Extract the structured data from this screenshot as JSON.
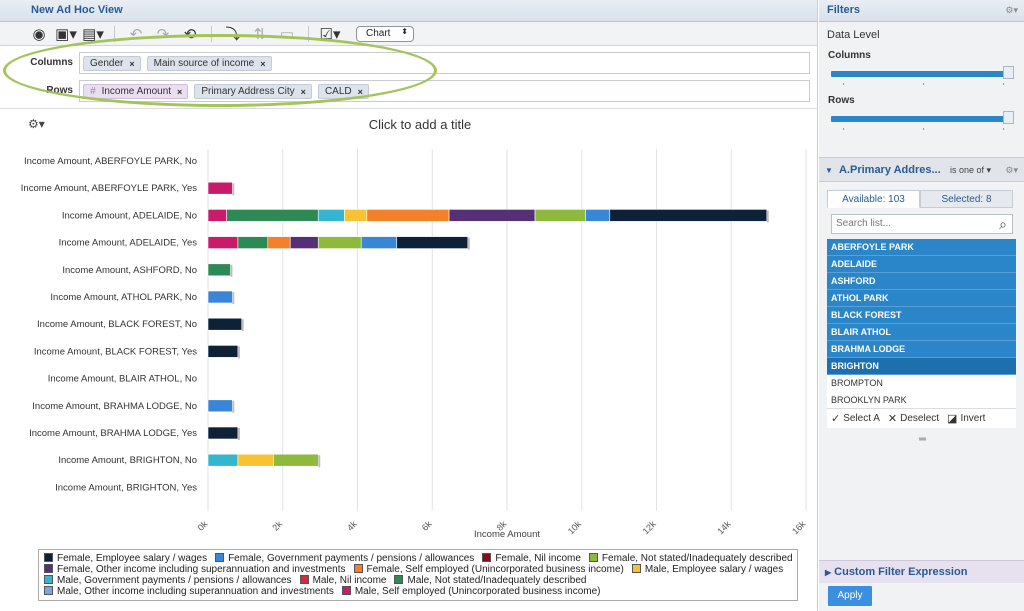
{
  "editor": {
    "title": "New Ad Hoc View",
    "toolbar": {
      "icons": [
        "eye-icon",
        "save-icon",
        "export-icon",
        "undo-icon",
        "redo-icon",
        "undo-all-icon",
        "switch-axes-icon",
        "pivot-icon",
        "sort-icon",
        "options-icon"
      ],
      "chart_type": "Chart"
    },
    "columns": {
      "label": "Columns",
      "pills": [
        {
          "text": "Gender"
        },
        {
          "text": "Main source of income"
        }
      ]
    },
    "rows": {
      "label": "Rows",
      "measure_hash": "#",
      "pills": [
        {
          "text": "Income Amount",
          "measure": true
        },
        {
          "text": "Primary Address City"
        },
        {
          "text": "CALD"
        }
      ]
    },
    "chart_title_placeholder": "Click to add a title",
    "remove_glyph": "×"
  },
  "chart_data": {
    "type": "bar",
    "orientation": "horizontal",
    "stacked": true,
    "xlabel": "Income Amount",
    "x_tick_labels": [
      "0k",
      "2k",
      "4k",
      "6k",
      "8k",
      "10k",
      "12k",
      "14k",
      "16k"
    ],
    "xlim": [
      0,
      16000
    ],
    "categories": [
      "Income Amount, ABERFOYLE PARK, No",
      "Income Amount, ABERFOYLE PARK, Yes",
      "Income Amount, ADELAIDE, No",
      "Income Amount, ADELAIDE, Yes",
      "Income Amount, ASHFORD, No",
      "Income Amount, ATHOL PARK, No",
      "Income Amount, BLACK FOREST, No",
      "Income Amount, BLACK FOREST, Yes",
      "Income Amount, BLAIR ATHOL, No",
      "Income Amount, BRAHMA LODGE, No",
      "Income Amount, BRAHMA LODGE, Yes",
      "Income Amount, BRIGHTON, No",
      "Income Amount, BRIGHTON, Yes"
    ],
    "series": [
      {
        "name": "Female, Employee salary / wages",
        "color": "#0d2237",
        "values": [
          0,
          0,
          4200,
          1900,
          0,
          0,
          900,
          800,
          0,
          0,
          800,
          0,
          0
        ]
      },
      {
        "name": "Female, Government payments / pensions / allowances",
        "color": "#3a86d6",
        "values": [
          0,
          0,
          650,
          950,
          0,
          650,
          0,
          0,
          0,
          650,
          0,
          0,
          0
        ]
      },
      {
        "name": "Female, Nil income",
        "color": "#8b0a1a",
        "values": [
          0,
          0,
          0,
          0,
          0,
          0,
          0,
          0,
          0,
          0,
          0,
          0,
          0
        ]
      },
      {
        "name": "Female, Not stated/Inadequately described",
        "color": "#8dba3c",
        "values": [
          0,
          0,
          1350,
          1150,
          0,
          0,
          0,
          0,
          0,
          0,
          0,
          1200,
          0
        ]
      },
      {
        "name": "Female, Other income including superannuation and investments",
        "color": "#553077",
        "values": [
          0,
          0,
          2300,
          750,
          0,
          0,
          0,
          0,
          0,
          0,
          0,
          0,
          0
        ]
      },
      {
        "name": "Female, Self employed (Unincorporated business income)",
        "color": "#f5802a",
        "values": [
          0,
          0,
          2200,
          600,
          0,
          0,
          0,
          0,
          0,
          0,
          0,
          0,
          0
        ]
      },
      {
        "name": "Male, Employee salary / wages",
        "color": "#f8c332",
        "values": [
          0,
          0,
          600,
          0,
          0,
          0,
          0,
          0,
          0,
          0,
          0,
          950,
          0
        ]
      },
      {
        "name": "Male, Government payments / pensions / allowances",
        "color": "#35b6d0",
        "values": [
          0,
          0,
          700,
          0,
          0,
          0,
          0,
          0,
          0,
          0,
          0,
          800,
          0
        ]
      },
      {
        "name": "Male, Nil income",
        "color": "#d42a3a",
        "values": [
          0,
          0,
          0,
          0,
          0,
          0,
          0,
          0,
          0,
          0,
          0,
          0,
          0
        ]
      },
      {
        "name": "Male, Not stated/Inadequately described",
        "color": "#2e8a55",
        "values": [
          0,
          0,
          2450,
          800,
          600,
          0,
          0,
          0,
          0,
          0,
          0,
          0,
          0
        ]
      },
      {
        "name": "Male, Other income including superannuation and investments",
        "color": "#7aa6e6",
        "values": [
          0,
          0,
          0,
          0,
          0,
          0,
          0,
          0,
          0,
          0,
          0,
          0,
          550
        ]
      },
      {
        "name": "Male, Self employed (Unincorporated business income)",
        "color": "#c81c6a",
        "values": [
          0,
          650,
          500,
          800,
          0,
          0,
          0,
          0,
          0,
          0,
          0,
          0,
          0
        ]
      }
    ],
    "stack_order": [
      11,
      9,
      7,
      6,
      5,
      4,
      3,
      1,
      0
    ],
    "legend_position": "bottom",
    "grid": true
  },
  "legend": {
    "lines": [
      [
        0,
        1,
        2,
        3
      ],
      [
        4,
        5,
        6
      ],
      [
        7,
        8,
        9
      ],
      [
        10,
        11
      ]
    ]
  },
  "filters": {
    "title": "Filters",
    "data_level": "Data Level",
    "columns_label": "Columns",
    "rows_label": "Rows",
    "primary_address": {
      "name": "A.Primary Addres...",
      "operator": "is one of",
      "tab_available": "Available: 103",
      "tab_selected": "Selected: 8",
      "search_placeholder": "Search list...",
      "cities": [
        {
          "name": "ABERFOYLE PARK",
          "selected": true
        },
        {
          "name": "ADELAIDE",
          "selected": true
        },
        {
          "name": "ASHFORD",
          "selected": true
        },
        {
          "name": "ATHOL PARK",
          "selected": true
        },
        {
          "name": "BLACK FOREST",
          "selected": true
        },
        {
          "name": "BLAIR ATHOL",
          "selected": true
        },
        {
          "name": "BRAHMA LODGE",
          "selected": true
        },
        {
          "name": "BRIGHTON",
          "selected": true,
          "dark": true
        },
        {
          "name": "BROMPTON",
          "selected": false
        },
        {
          "name": "BROOKLYN PARK",
          "selected": false
        }
      ],
      "select_all": "Select A",
      "deselect": "Deselect",
      "invert": "Invert"
    },
    "custom_filter_expression": "Custom Filter Expression",
    "apply": "Apply"
  }
}
